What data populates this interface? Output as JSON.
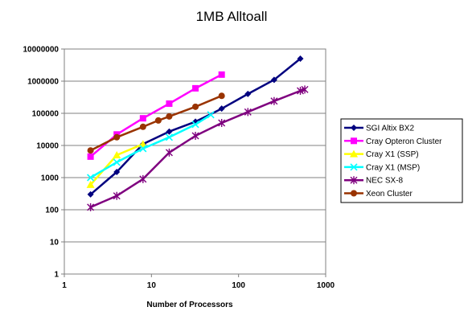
{
  "chart_data": {
    "type": "line",
    "title": "1MB Alltoall",
    "xlabel": "Number of Processors",
    "ylabel": "",
    "x_scale": "log",
    "y_scale": "log",
    "xlim": [
      1,
      1000
    ],
    "ylim": [
      1,
      10000000
    ],
    "x_ticks": [
      "1",
      "10",
      "100",
      "1000"
    ],
    "y_ticks": [
      "1",
      "10",
      "100",
      "1000",
      "10000",
      "100000",
      "1000000",
      "10000000"
    ],
    "grid": "horizontal",
    "legend_position": "right",
    "series": [
      {
        "name": "SGI Altix BX2",
        "color": "#00007f",
        "marker": "diamond",
        "x": [
          2,
          4,
          8,
          16,
          32,
          64,
          128,
          256,
          512
        ],
        "y": [
          300,
          1500,
          11000,
          27000,
          55000,
          140000,
          400000,
          1100000,
          5000000
        ]
      },
      {
        "name": "Cray Opteron Cluster",
        "color": "#ff00ff",
        "marker": "square",
        "x": [
          2,
          4,
          8,
          16,
          32,
          64
        ],
        "y": [
          4500,
          22000,
          70000,
          200000,
          600000,
          1600000
        ]
      },
      {
        "name": "Cray X1 (SSP)",
        "color": "#ffff00",
        "marker": "triangle",
        "x": [
          2,
          4,
          8
        ],
        "y": [
          600,
          5000,
          11000
        ]
      },
      {
        "name": "Cray X1 (MSP)",
        "color": "#00ffff",
        "marker": "x",
        "x": [
          2,
          4,
          8,
          16,
          32,
          48
        ],
        "y": [
          1000,
          3000,
          8000,
          18000,
          45000,
          90000
        ]
      },
      {
        "name": "NEC SX-8",
        "color": "#7f007f",
        "marker": "asterisk",
        "x": [
          2,
          4,
          8,
          16,
          32,
          64,
          128,
          256,
          512,
          576
        ],
        "y": [
          120,
          270,
          900,
          6000,
          20000,
          50000,
          110000,
          240000,
          500000,
          550000
        ]
      },
      {
        "name": "Xeon Cluster",
        "color": "#993300",
        "marker": "circle",
        "x": [
          2,
          4,
          8,
          12,
          16,
          32,
          64
        ],
        "y": [
          7000,
          18000,
          38000,
          60000,
          80000,
          160000,
          350000
        ]
      }
    ]
  }
}
